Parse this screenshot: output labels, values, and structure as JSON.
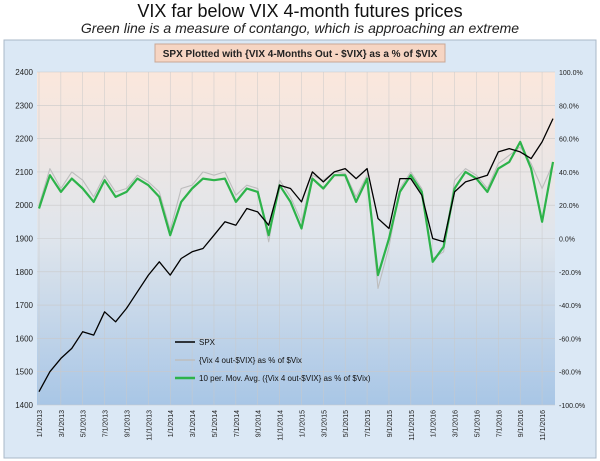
{
  "page": {
    "title": "VIX far below VIX 4-month futures prices",
    "subtitle": "Green line is a measure of contango, which is approaching an extreme"
  },
  "colors": {
    "spx": "#000000",
    "raw_contango": "#bdbdbd",
    "moving_avg": "#2db34a",
    "plot_top": "#fbe7dc",
    "plot_bottom": "#a8c6e6",
    "frame_bg": "#dbe8f5",
    "title_box": "#f6d5c3"
  },
  "chart_data": {
    "type": "line",
    "title": "SPX Plotted with {VIX 4-Months Out - $VIX} as a % of $VIX",
    "left_axis": {
      "ylim": [
        1400,
        2400
      ],
      "ticks": [
        "1400",
        "1500",
        "1600",
        "1700",
        "1800",
        "1900",
        "2000",
        "2100",
        "2200",
        "2300",
        "2400"
      ]
    },
    "right_axis": {
      "ylim": [
        -100,
        100
      ],
      "ticks": [
        "-100.0%",
        "-80.0%",
        "-60.0%",
        "-40.0%",
        "-20.0%",
        "0.0%",
        "20.0%",
        "40.0%",
        "60.0%",
        "80.0%",
        "100.0%"
      ]
    },
    "x_tick_labels": [
      "1/1/2013",
      "3/1/2013",
      "5/1/2013",
      "7/1/2013",
      "9/1/2013",
      "11/1/2013",
      "1/1/2014",
      "3/1/2014",
      "5/1/2014",
      "7/1/2014",
      "9/1/2014",
      "11/1/2014",
      "1/1/2015",
      "3/1/2015",
      "5/1/2015",
      "7/1/2015",
      "9/1/2015",
      "11/1/2015",
      "1/1/2016",
      "3/1/2016",
      "5/1/2016",
      "7/1/2016",
      "9/1/2016",
      "11/1/2016"
    ],
    "grid": true,
    "legend_position": "bottom-left",
    "series": [
      {
        "name": "SPX",
        "axis": "left",
        "x": [
          "2013-01",
          "2013-02",
          "2013-03",
          "2013-04",
          "2013-05",
          "2013-06",
          "2013-07",
          "2013-08",
          "2013-09",
          "2013-10",
          "2013-11",
          "2013-12",
          "2014-01",
          "2014-02",
          "2014-03",
          "2014-04",
          "2014-05",
          "2014-06",
          "2014-07",
          "2014-08",
          "2014-09",
          "2014-10",
          "2014-11",
          "2014-12",
          "2015-01",
          "2015-02",
          "2015-03",
          "2015-04",
          "2015-05",
          "2015-06",
          "2015-07",
          "2015-08",
          "2015-09",
          "2015-10",
          "2015-11",
          "2015-12",
          "2016-01",
          "2016-02",
          "2016-03",
          "2016-04",
          "2016-05",
          "2016-06",
          "2016-07",
          "2016-08",
          "2016-09",
          "2016-10",
          "2016-11",
          "2016-12"
        ],
        "values": [
          1440,
          1500,
          1540,
          1570,
          1620,
          1610,
          1680,
          1650,
          1690,
          1740,
          1790,
          1830,
          1790,
          1840,
          1860,
          1870,
          1910,
          1950,
          1940,
          1990,
          1980,
          1940,
          2060,
          2050,
          2010,
          2100,
          2070,
          2100,
          2110,
          2080,
          2110,
          1960,
          1930,
          2080,
          2080,
          2030,
          1900,
          1890,
          2040,
          2070,
          2080,
          2090,
          2160,
          2170,
          2160,
          2140,
          2190,
          2260
        ]
      },
      {
        "name": "{Vix 4 out-$VIX} as % of $Vix",
        "axis": "right",
        "x": [
          "2013-01",
          "2013-02",
          "2013-03",
          "2013-04",
          "2013-05",
          "2013-06",
          "2013-07",
          "2013-08",
          "2013-09",
          "2013-10",
          "2013-11",
          "2013-12",
          "2014-01",
          "2014-02",
          "2014-03",
          "2014-04",
          "2014-05",
          "2014-06",
          "2014-07",
          "2014-08",
          "2014-09",
          "2014-10",
          "2014-11",
          "2014-12",
          "2015-01",
          "2015-02",
          "2015-03",
          "2015-04",
          "2015-05",
          "2015-06",
          "2015-07",
          "2015-08",
          "2015-09",
          "2015-10",
          "2015-11",
          "2015-12",
          "2016-01",
          "2016-02",
          "2016-03",
          "2016-04",
          "2016-05",
          "2016-06",
          "2016-07",
          "2016-08",
          "2016-09",
          "2016-10",
          "2016-11",
          "2016-12"
        ],
        "values": [
          20,
          42,
          30,
          40,
          35,
          25,
          38,
          28,
          30,
          38,
          34,
          28,
          5,
          30,
          32,
          40,
          38,
          40,
          26,
          32,
          30,
          -2,
          35,
          25,
          10,
          38,
          35,
          40,
          39,
          25,
          38,
          -30,
          -5,
          30,
          40,
          30,
          -12,
          -8,
          35,
          42,
          38,
          30,
          45,
          50,
          55,
          45,
          30,
          45
        ]
      },
      {
        "name": "10 per. Mov. Avg. ({Vix 4 out-$VIX} as % of $Vix)",
        "axis": "right",
        "x": [
          "2013-01",
          "2013-02",
          "2013-03",
          "2013-04",
          "2013-05",
          "2013-06",
          "2013-07",
          "2013-08",
          "2013-09",
          "2013-10",
          "2013-11",
          "2013-12",
          "2014-01",
          "2014-02",
          "2014-03",
          "2014-04",
          "2014-05",
          "2014-06",
          "2014-07",
          "2014-08",
          "2014-09",
          "2014-10",
          "2014-11",
          "2014-12",
          "2015-01",
          "2015-02",
          "2015-03",
          "2015-04",
          "2015-05",
          "2015-06",
          "2015-07",
          "2015-08",
          "2015-09",
          "2015-10",
          "2015-11",
          "2015-12",
          "2016-01",
          "2016-02",
          "2016-03",
          "2016-04",
          "2016-05",
          "2016-06",
          "2016-07",
          "2016-08",
          "2016-09",
          "2016-10",
          "2016-11",
          "2016-12"
        ],
        "values": [
          18,
          38,
          28,
          36,
          30,
          22,
          35,
          25,
          28,
          36,
          32,
          25,
          2,
          22,
          30,
          36,
          35,
          36,
          22,
          30,
          28,
          2,
          32,
          22,
          6,
          36,
          30,
          38,
          38,
          22,
          36,
          -22,
          0,
          28,
          38,
          28,
          -14,
          -5,
          30,
          40,
          36,
          28,
          42,
          46,
          58,
          42,
          10,
          46
        ]
      }
    ]
  },
  "legend": {
    "spx": "SPX",
    "raw": "{Vix 4 out-$VIX} as % of $Vix",
    "avg": "10 per. Mov. Avg. ({Vix 4 out-$VIX} as % of $Vix)"
  }
}
